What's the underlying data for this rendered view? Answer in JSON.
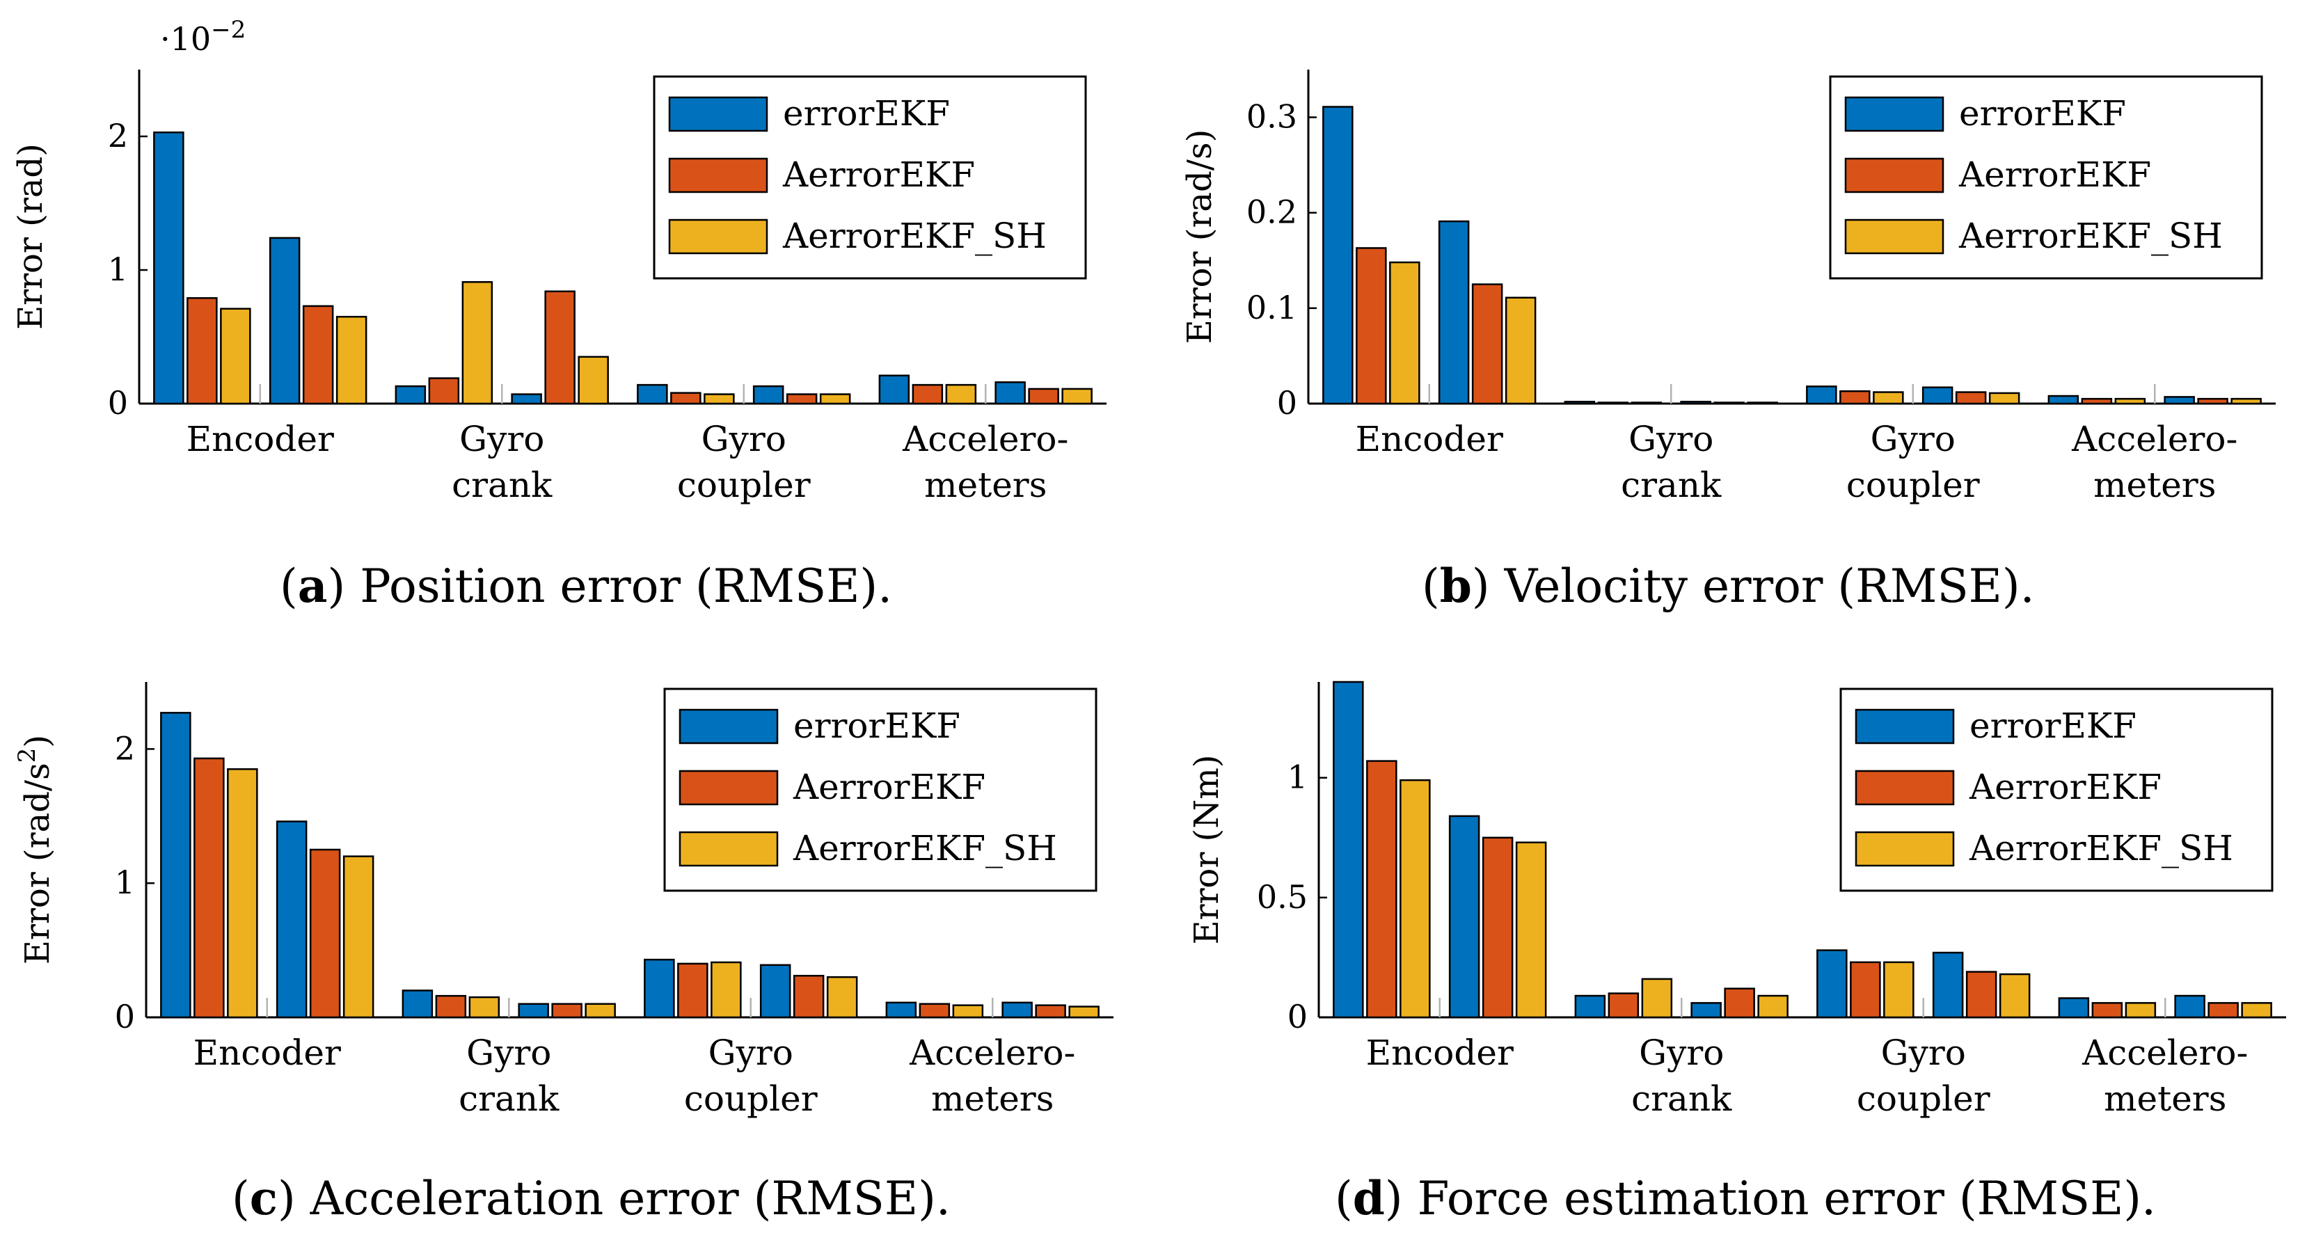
{
  "colors": {
    "errorEKF": "#0072BD",
    "AerrorEKF": "#D95319",
    "AerrorEKF_SH": "#EDB120"
  },
  "legend": [
    "errorEKF",
    "AerrorEKF",
    "AerrorEKF_SH"
  ],
  "chart_data": [
    {
      "type": "bar",
      "panel": "a",
      "caption_letter": "a",
      "caption_text": " Position error (RMSE).",
      "ylabel": "Error (rad)",
      "scale_label": "·10",
      "scale_exp": "−2",
      "ylim": [
        0,
        2.5
      ],
      "yticks": [
        0,
        1,
        2
      ],
      "ytick_labels": [
        "0",
        "1",
        "2"
      ],
      "groups": [
        {
          "label_lines": [
            "Encoder"
          ]
        },
        {
          "label_lines": [
            "Gyro",
            "crank"
          ]
        },
        {
          "label_lines": [
            "Gyro",
            "coupler"
          ]
        },
        {
          "label_lines": [
            "Accelero-",
            "meters"
          ]
        }
      ],
      "series": [
        {
          "name": "errorEKF",
          "values": [
            [
              2.03,
              1.24
            ],
            [
              0.13,
              0.07
            ],
            [
              0.14,
              0.13
            ],
            [
              0.21,
              0.16
            ]
          ]
        },
        {
          "name": "AerrorEKF",
          "values": [
            [
              0.79,
              0.73
            ],
            [
              0.19,
              0.84
            ],
            [
              0.08,
              0.07
            ],
            [
              0.14,
              0.11
            ]
          ]
        },
        {
          "name": "AerrorEKF_SH",
          "values": [
            [
              0.71,
              0.65
            ],
            [
              0.91,
              0.35
            ],
            [
              0.07,
              0.07
            ],
            [
              0.14,
              0.11
            ]
          ]
        }
      ]
    },
    {
      "type": "bar",
      "panel": "b",
      "caption_letter": "b",
      "caption_text": " Velocity error (RMSE).",
      "ylabel": "Error (rad/s)",
      "ylim": [
        0,
        0.35
      ],
      "yticks": [
        0,
        0.1,
        0.2,
        0.3
      ],
      "ytick_labels": [
        "0",
        "0.1",
        "0.2",
        "0.3"
      ],
      "groups": [
        {
          "label_lines": [
            "Encoder"
          ]
        },
        {
          "label_lines": [
            "Gyro",
            "crank"
          ]
        },
        {
          "label_lines": [
            "Gyro",
            "coupler"
          ]
        },
        {
          "label_lines": [
            "Accelero-",
            "meters"
          ]
        }
      ],
      "series": [
        {
          "name": "errorEKF",
          "values": [
            [
              0.311,
              0.191
            ],
            [
              0.002,
              0.002
            ],
            [
              0.018,
              0.017
            ],
            [
              0.008,
              0.007
            ]
          ]
        },
        {
          "name": "AerrorEKF",
          "values": [
            [
              0.163,
              0.125
            ],
            [
              0.001,
              0.001
            ],
            [
              0.013,
              0.012
            ],
            [
              0.005,
              0.005
            ]
          ]
        },
        {
          "name": "AerrorEKF_SH",
          "values": [
            [
              0.148,
              0.111
            ],
            [
              0.001,
              0.001
            ],
            [
              0.012,
              0.011
            ],
            [
              0.005,
              0.005
            ]
          ]
        }
      ]
    },
    {
      "type": "bar",
      "panel": "c",
      "caption_letter": "c",
      "caption_text": " Acceleration error (RMSE).",
      "ylabel": "Error (rad/s",
      "ylabel_sup": "2",
      "ylabel_end": ")",
      "ylim": [
        0,
        2.5
      ],
      "yticks": [
        0,
        1,
        2
      ],
      "ytick_labels": [
        "0",
        "1",
        "2"
      ],
      "groups": [
        {
          "label_lines": [
            "Encoder"
          ]
        },
        {
          "label_lines": [
            "Gyro",
            "crank"
          ]
        },
        {
          "label_lines": [
            "Gyro",
            "coupler"
          ]
        },
        {
          "label_lines": [
            "Accelero-",
            "meters"
          ]
        }
      ],
      "series": [
        {
          "name": "errorEKF",
          "values": [
            [
              2.27,
              1.46
            ],
            [
              0.2,
              0.1
            ],
            [
              0.43,
              0.39
            ],
            [
              0.11,
              0.11
            ]
          ]
        },
        {
          "name": "AerrorEKF",
          "values": [
            [
              1.93,
              1.25
            ],
            [
              0.16,
              0.1
            ],
            [
              0.4,
              0.31
            ],
            [
              0.1,
              0.09
            ]
          ]
        },
        {
          "name": "AerrorEKF_SH",
          "values": [
            [
              1.85,
              1.2
            ],
            [
              0.15,
              0.1
            ],
            [
              0.41,
              0.3
            ],
            [
              0.09,
              0.08
            ]
          ]
        }
      ]
    },
    {
      "type": "bar",
      "panel": "d",
      "caption_letter": "d",
      "caption_text": " Force estimation error (RMSE).",
      "ylabel": "Error (Nm)",
      "ylim": [
        0,
        1.4
      ],
      "yticks": [
        0,
        0.5,
        1
      ],
      "ytick_labels": [
        "0",
        "0.5",
        "1"
      ],
      "groups": [
        {
          "label_lines": [
            "Encoder"
          ]
        },
        {
          "label_lines": [
            "Gyro",
            "crank"
          ]
        },
        {
          "label_lines": [
            "Gyro",
            "coupler"
          ]
        },
        {
          "label_lines": [
            "Accelero-",
            "meters"
          ]
        }
      ],
      "series": [
        {
          "name": "errorEKF",
          "values": [
            [
              1.4,
              0.84
            ],
            [
              0.09,
              0.06
            ],
            [
              0.28,
              0.27
            ],
            [
              0.08,
              0.09
            ]
          ]
        },
        {
          "name": "AerrorEKF",
          "values": [
            [
              1.07,
              0.75
            ],
            [
              0.1,
              0.12
            ],
            [
              0.23,
              0.19
            ],
            [
              0.06,
              0.06
            ]
          ]
        },
        {
          "name": "AerrorEKF_SH",
          "values": [
            [
              0.99,
              0.73
            ],
            [
              0.16,
              0.09
            ],
            [
              0.23,
              0.18
            ],
            [
              0.06,
              0.06
            ]
          ]
        }
      ]
    }
  ]
}
